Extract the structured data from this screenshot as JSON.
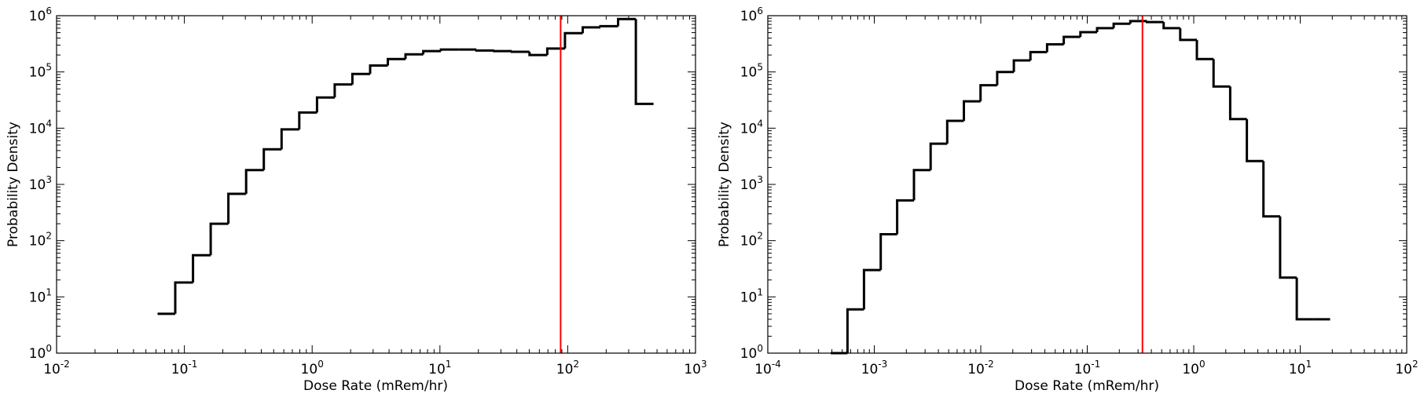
{
  "chart_data": [
    {
      "type": "histogram",
      "xlabel": "Dose Rate (mRem/hr)",
      "ylabel": "Probability Density",
      "xscale": "log",
      "yscale": "log",
      "xlim": [
        0.01,
        1000
      ],
      "ylim": [
        1,
        1000000
      ],
      "x_tick_labels": [
        {
          "value": 0.01,
          "base": "10",
          "exp": "-2"
        },
        {
          "value": 0.1,
          "base": "10",
          "exp": "-1"
        },
        {
          "value": 1,
          "base": "10",
          "exp": "0"
        },
        {
          "value": 10,
          "base": "10",
          "exp": "1"
        },
        {
          "value": 100,
          "base": "10",
          "exp": "2"
        },
        {
          "value": 1000,
          "base": "10",
          "exp": "3"
        }
      ],
      "y_tick_labels": [
        {
          "value": 1,
          "base": "10",
          "exp": "0"
        },
        {
          "value": 10,
          "base": "10",
          "exp": "1"
        },
        {
          "value": 100,
          "base": "10",
          "exp": "2"
        },
        {
          "value": 1000,
          "base": "10",
          "exp": "3"
        },
        {
          "value": 10000,
          "base": "10",
          "exp": "4"
        },
        {
          "value": 100000,
          "base": "10",
          "exp": "5"
        },
        {
          "value": 1000000,
          "base": "10",
          "exp": "6"
        }
      ],
      "bin_edges": [
        0.0617,
        0.0849,
        0.1168,
        0.1607,
        0.2211,
        0.3043,
        0.4187,
        0.5761,
        0.7928,
        1.091,
        1.501,
        2.065,
        2.842,
        3.911,
        5.381,
        7.405,
        10.19,
        14.02,
        19.29,
        26.55,
        36.53,
        50.27,
        69.17,
        95.18,
        131.0,
        180.2,
        248.0,
        341.2,
        469.5
      ],
      "values": [
        5,
        18,
        55,
        200,
        680,
        1800,
        4200,
        9500,
        19000,
        35000,
        60000,
        92000,
        130000,
        170000,
        205000,
        235000,
        250000,
        250000,
        240000,
        235000,
        228000,
        200000,
        260000,
        490000,
        620000,
        650000,
        870000,
        27000
      ],
      "vline": {
        "x": 88,
        "color": "#ff0000"
      },
      "line_color": "#000000",
      "grid": false
    },
    {
      "type": "histogram",
      "xlabel": "Dose Rate (mRem/hr)",
      "ylabel": "Probability Density",
      "xscale": "log",
      "yscale": "log",
      "xlim": [
        0.0001,
        100
      ],
      "ylim": [
        1,
        1000000
      ],
      "x_tick_labels": [
        {
          "value": 0.0001,
          "base": "10",
          "exp": "-4"
        },
        {
          "value": 0.001,
          "base": "10",
          "exp": "-3"
        },
        {
          "value": 0.01,
          "base": "10",
          "exp": "-2"
        },
        {
          "value": 0.1,
          "base": "10",
          "exp": "-1"
        },
        {
          "value": 1,
          "base": "10",
          "exp": "0"
        },
        {
          "value": 10,
          "base": "10",
          "exp": "1"
        },
        {
          "value": 100,
          "base": "10",
          "exp": "2"
        }
      ],
      "y_tick_labels": [
        {
          "value": 1,
          "base": "10",
          "exp": "0"
        },
        {
          "value": 10,
          "base": "10",
          "exp": "1"
        },
        {
          "value": 100,
          "base": "10",
          "exp": "2"
        },
        {
          "value": 1000,
          "base": "10",
          "exp": "3"
        },
        {
          "value": 10000,
          "base": "10",
          "exp": "4"
        },
        {
          "value": 100000,
          "base": "10",
          "exp": "5"
        },
        {
          "value": 1000000,
          "base": "10",
          "exp": "6"
        }
      ],
      "bin_edges": [
        0.00039,
        0.00056,
        0.0008,
        0.00115,
        0.00164,
        0.00236,
        0.00338,
        0.00484,
        0.00694,
        0.00995,
        0.01426,
        0.02044,
        0.02929,
        0.04198,
        0.06016,
        0.08622,
        0.1236,
        0.1771,
        0.2538,
        0.3637,
        0.5213,
        0.7471,
        1.071,
        1.535,
        2.199,
        3.152,
        4.517,
        6.474,
        9.279,
        13.3,
        19.06
      ],
      "values": [
        1,
        6,
        30,
        130,
        520,
        1800,
        5300,
        13500,
        30000,
        58000,
        100000,
        160000,
        225000,
        310000,
        420000,
        510000,
        600000,
        720000,
        800000,
        770000,
        600000,
        370000,
        170000,
        55000,
        14500,
        2600,
        270,
        22,
        4,
        4
      ],
      "vline": {
        "x": 0.33,
        "color": "#ff0000"
      },
      "line_color": "#000000",
      "grid": false
    }
  ]
}
